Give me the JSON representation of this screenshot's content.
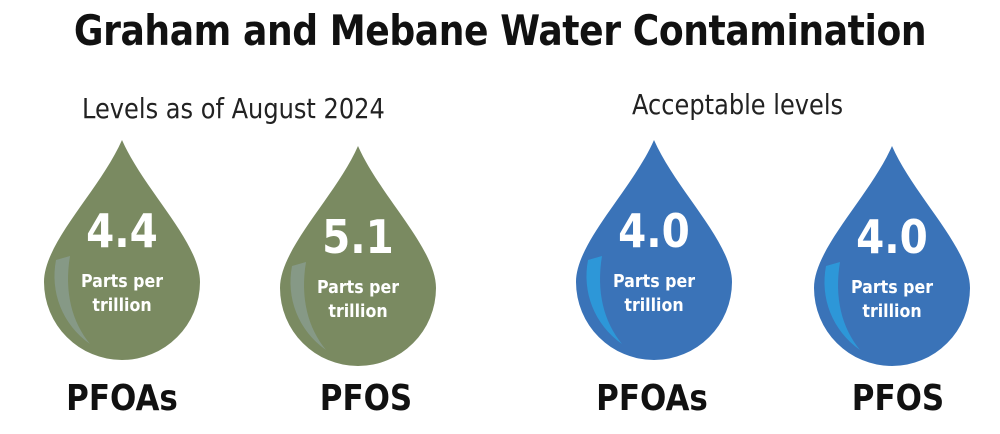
{
  "title": "Graham and Mebane Water Contamination",
  "groups": {
    "current": {
      "heading": "Levels as of August 2024",
      "color": "#7a8a61"
    },
    "acceptable": {
      "heading": "Acceptable levels",
      "color": "#3a73b8"
    }
  },
  "drops": [
    {
      "value": "4.4",
      "unit_line1": "Parts per",
      "unit_line2": "trillion",
      "label": "PFOAs",
      "group": "current"
    },
    {
      "value": "5.1",
      "unit_line1": "Parts per",
      "unit_line2": "trillion",
      "label": "PFOS",
      "group": "current"
    },
    {
      "value": "4.0",
      "unit_line1": "Parts per",
      "unit_line2": "trillion",
      "label": "PFOAs",
      "group": "acceptable"
    },
    {
      "value": "4.0",
      "unit_line1": "Parts per",
      "unit_line2": "trillion",
      "label": "PFOS",
      "group": "acceptable"
    }
  ],
  "icons": {
    "drop": "water-drop-icon"
  }
}
